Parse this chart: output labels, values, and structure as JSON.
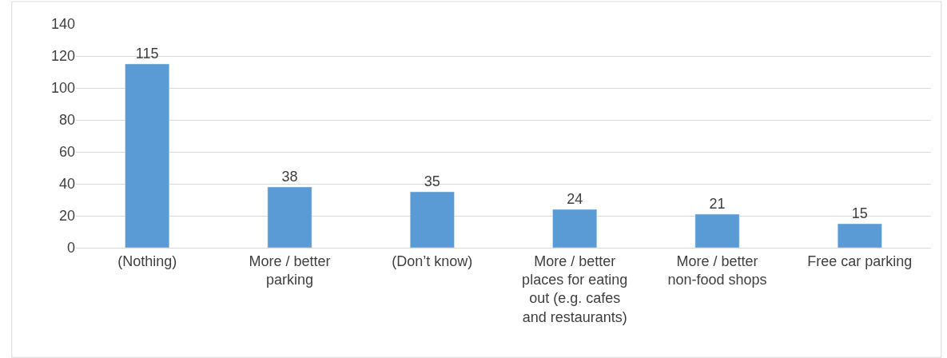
{
  "chart_data": {
    "type": "bar",
    "categories": [
      "(Nothing)",
      "More / better parking",
      "(Don’t know)",
      "More / better places for eating out (e.g. cafes and restaurants)",
      "More / better non-food shops",
      "Free car parking"
    ],
    "values": [
      115,
      38,
      35,
      24,
      21,
      15
    ],
    "color": "#5b9bd5",
    "ylim": [
      0,
      140
    ],
    "yticks": [
      0,
      20,
      40,
      60,
      80,
      100,
      120,
      140
    ],
    "grid": "y",
    "data_labels": true
  }
}
